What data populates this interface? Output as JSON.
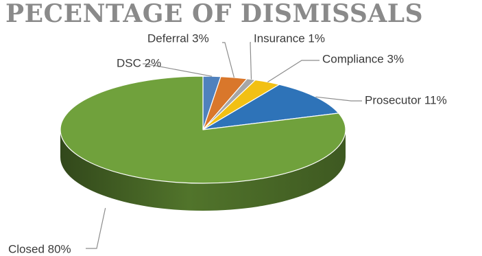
{
  "chart_data": {
    "type": "pie",
    "title": "PECENTAGE OF DISMISSALS",
    "slices": [
      {
        "label": "DSC",
        "value": 2,
        "value_label": "2%",
        "color": "#4f81bd"
      },
      {
        "label": "Deferral",
        "value": 3,
        "value_label": "3%",
        "color": "#d9772b"
      },
      {
        "label": "Insurance",
        "value": 1,
        "value_label": "1%",
        "color": "#a6a6a6"
      },
      {
        "label": "Compliance",
        "value": 3,
        "value_label": "3%",
        "color": "#f2c014"
      },
      {
        "label": "Prosecutor",
        "value": 11,
        "value_label": "11%",
        "color": "#2e73b8"
      },
      {
        "label": "Closed",
        "value": 80,
        "value_label": "80%",
        "color": "#70a13c"
      }
    ],
    "legend": "none",
    "style": "3d-pie"
  }
}
